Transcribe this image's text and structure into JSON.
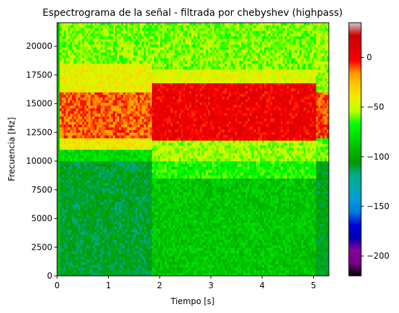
{
  "chart_data": {
    "type": "heatmap",
    "title": "Espectrograma de la señal - filtrada por chebyshev (highpass)",
    "xlabel": "Tiempo [s]",
    "ylabel": "Frecuencia [Hz]",
    "xlim": [
      0,
      5.3
    ],
    "ylim": [
      0,
      22050
    ],
    "x_ticks": [
      0,
      1,
      2,
      3,
      4,
      5
    ],
    "y_ticks": [
      0,
      2500,
      5000,
      7500,
      10000,
      12500,
      15000,
      17500,
      20000
    ],
    "colormap": "nipy_spectral",
    "colorbar": {
      "range": [
        -220,
        35
      ],
      "ticks": [
        0,
        -50,
        -100,
        -150,
        -200
      ],
      "position": "right"
    },
    "segments": [
      {
        "t_start": 0.05,
        "t_end": 1.85,
        "bands": [
          {
            "f_low": 0,
            "f_high": 10000,
            "level_db": -108
          },
          {
            "f_low": 10000,
            "f_high": 11000,
            "level_db": -80
          },
          {
            "f_low": 11000,
            "f_high": 12000,
            "level_db": -40
          },
          {
            "f_low": 12000,
            "f_high": 16000,
            "level_db": -12
          },
          {
            "f_low": 16000,
            "f_high": 18500,
            "level_db": -42
          },
          {
            "f_low": 18500,
            "f_high": 22050,
            "level_db": -58
          }
        ]
      },
      {
        "t_start": 1.85,
        "t_end": 5.05,
        "bands": [
          {
            "f_low": 0,
            "f_high": 8500,
            "level_db": -88
          },
          {
            "f_low": 8500,
            "f_high": 10000,
            "level_db": -68
          },
          {
            "f_low": 10000,
            "f_high": 11800,
            "level_db": -55
          },
          {
            "f_low": 11800,
            "f_high": 16800,
            "level_db": 3
          },
          {
            "f_low": 16800,
            "f_high": 18000,
            "level_db": -45
          },
          {
            "f_low": 18000,
            "f_high": 22050,
            "level_db": -58
          }
        ]
      },
      {
        "t_start": 5.05,
        "t_end": 5.3,
        "bands": [
          {
            "f_low": 0,
            "f_high": 10000,
            "level_db": -105
          },
          {
            "f_low": 10000,
            "f_high": 12000,
            "level_db": -60
          },
          {
            "f_low": 12000,
            "f_high": 16000,
            "level_db": -10
          },
          {
            "f_low": 16000,
            "f_high": 22050,
            "level_db": -55
          }
        ]
      }
    ]
  }
}
